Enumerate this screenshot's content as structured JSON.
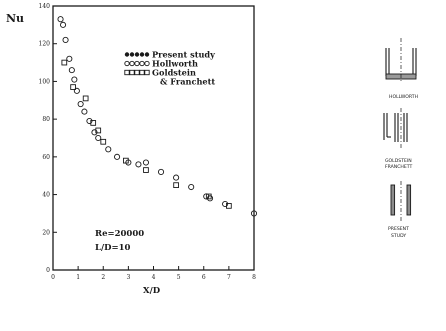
{
  "chart_data": {
    "type": "scatter",
    "ylabel": "Nu",
    "xlabel": "X/D",
    "xlim": [
      0,
      8
    ],
    "ylim": [
      0,
      140
    ],
    "x_ticks": [
      "0",
      "1",
      "2",
      "3",
      "4",
      "5",
      "6",
      "7",
      "8"
    ],
    "y_ticks": [
      "0",
      "20",
      "40",
      "60",
      "80",
      "100",
      "120",
      "140"
    ],
    "legend": [
      {
        "marker": "filled-circles",
        "label": "Present study"
      },
      {
        "marker": "open-circles",
        "label": "Hollworth"
      },
      {
        "marker": "open-squares",
        "label": "Goldstein"
      },
      {
        "marker": "none",
        "label": "& Franchett"
      }
    ],
    "annotations": [
      "Re=20000",
      "L/D=10"
    ],
    "series": [
      {
        "marker": "circle",
        "points": [
          [
            0.3,
            133
          ],
          [
            0.4,
            130
          ],
          [
            0.5,
            122
          ],
          [
            0.65,
            112
          ],
          [
            0.75,
            106
          ],
          [
            0.85,
            101
          ],
          [
            0.95,
            95
          ],
          [
            1.1,
            88
          ],
          [
            1.25,
            84
          ],
          [
            1.45,
            79
          ],
          [
            1.65,
            73
          ],
          [
            1.8,
            70
          ],
          [
            2.2,
            64
          ],
          [
            2.55,
            60
          ],
          [
            3.0,
            57
          ],
          [
            3.4,
            56
          ],
          [
            3.7,
            57
          ],
          [
            4.3,
            52
          ],
          [
            4.9,
            49
          ],
          [
            5.5,
            44
          ],
          [
            6.1,
            39
          ],
          [
            6.25,
            38
          ],
          [
            6.85,
            35
          ],
          [
            8.0,
            30
          ]
        ]
      },
      {
        "marker": "square",
        "points": [
          [
            0.45,
            110
          ],
          [
            0.8,
            97
          ],
          [
            1.3,
            91
          ],
          [
            1.6,
            78
          ],
          [
            1.8,
            74
          ],
          [
            2.0,
            68
          ],
          [
            2.9,
            58
          ],
          [
            3.7,
            53
          ],
          [
            4.9,
            45
          ],
          [
            6.2,
            39
          ],
          [
            7.0,
            34
          ]
        ]
      }
    ]
  },
  "schematics": {
    "labels": [
      "HOLLWORTH",
      "GOLDSTEIN",
      "FRANCHETT",
      "PRESENT",
      "STUDY"
    ]
  }
}
